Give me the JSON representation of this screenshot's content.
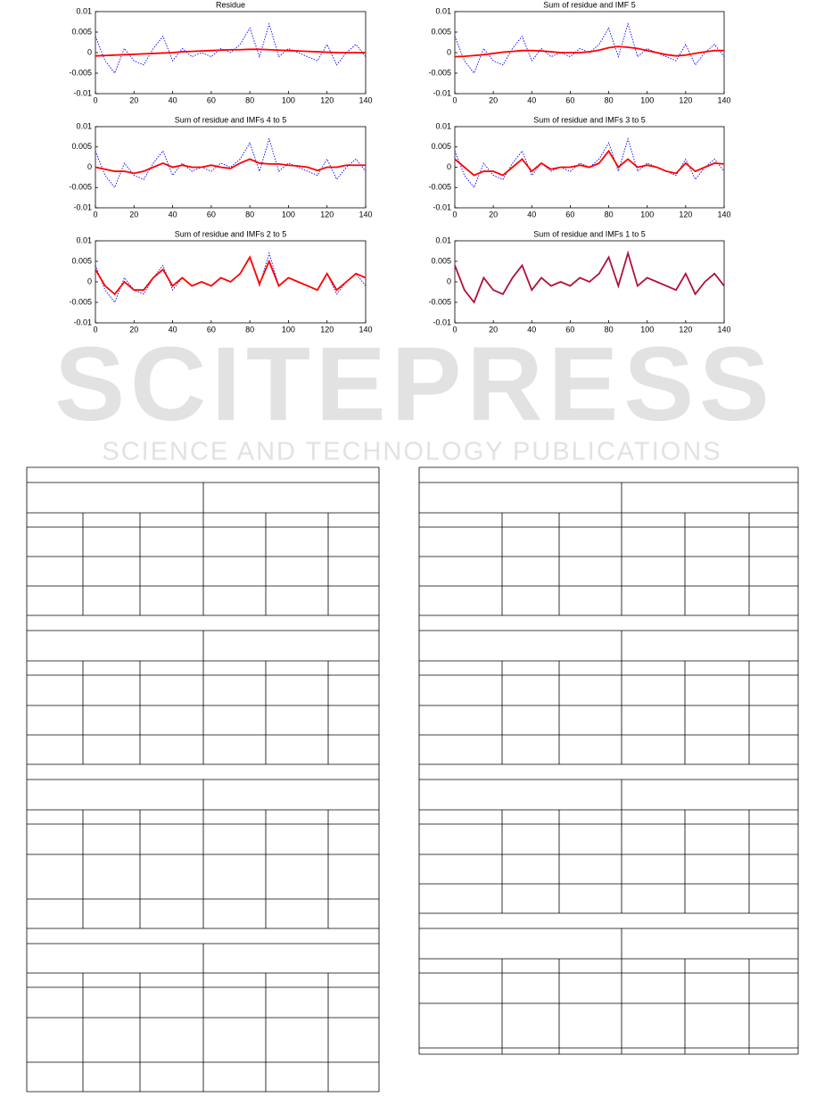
{
  "watermark": {
    "title": "SCITEPRESS",
    "subtitle": "SCIENCE AND TECHNOLOGY PUBLICATIONS"
  },
  "chart_data": [
    {
      "type": "line",
      "title": "Residue",
      "x": [
        0,
        5,
        10,
        15,
        20,
        25,
        30,
        35,
        40,
        45,
        50,
        55,
        60,
        65,
        70,
        75,
        80,
        85,
        90,
        95,
        100,
        105,
        110,
        115,
        120,
        125,
        130,
        135,
        140
      ],
      "series": [
        {
          "color": "#0000ff",
          "style": "dotted",
          "values": [
            0.004,
            -0.002,
            -0.005,
            0.001,
            -0.002,
            -0.003,
            0.001,
            0.004,
            -0.002,
            0.001,
            -0.001,
            0,
            -0.001,
            0.001,
            0,
            0.002,
            0.006,
            -0.001,
            0.007,
            -0.001,
            0.001,
            0,
            -0.001,
            -0.002,
            0.002,
            -0.003,
            0,
            0.002,
            -0.001
          ]
        },
        {
          "color": "#ff0000",
          "style": "solid",
          "values": [
            -0.0008,
            -0.0007,
            -0.0006,
            -0.0005,
            -0.0004,
            -0.0003,
            -0.0002,
            -0.0001,
            0,
            0.0002,
            0.0003,
            0.0004,
            0.0005,
            0.0006,
            0.0007,
            0.0007,
            0.0008,
            0.0008,
            0.0007,
            0.0006,
            0.0005,
            0.0004,
            0.0003,
            0.0002,
            0.0001,
            0,
            0,
            0,
            0
          ]
        }
      ],
      "xlim": [
        0,
        140
      ],
      "xticks": [
        0,
        20,
        40,
        60,
        80,
        100,
        120,
        140
      ],
      "ylim": [
        -0.01,
        0.01
      ],
      "yticks": [
        -0.01,
        -0.005,
        0,
        0.005,
        0.01
      ]
    },
    {
      "type": "line",
      "title": "Sum of residue and IMF 5",
      "x": [
        0,
        5,
        10,
        15,
        20,
        25,
        30,
        35,
        40,
        45,
        50,
        55,
        60,
        65,
        70,
        75,
        80,
        85,
        90,
        95,
        100,
        105,
        110,
        115,
        120,
        125,
        130,
        135,
        140
      ],
      "series": [
        {
          "color": "#0000ff",
          "style": "dotted",
          "values": [
            0.004,
            -0.002,
            -0.005,
            0.001,
            -0.002,
            -0.003,
            0.001,
            0.004,
            -0.002,
            0.001,
            -0.001,
            0,
            -0.001,
            0.001,
            0,
            0.002,
            0.006,
            -0.001,
            0.007,
            -0.001,
            0.001,
            0,
            -0.001,
            -0.002,
            0.002,
            -0.003,
            0,
            0.002,
            -0.001
          ]
        },
        {
          "color": "#ff0000",
          "style": "solid",
          "values": [
            -0.001,
            -0.0009,
            -0.0007,
            -0.0005,
            -0.0002,
            0.0001,
            0.0003,
            0.0005,
            0.0005,
            0.0004,
            0.0002,
            0,
            0,
            0,
            0.0002,
            0.0006,
            0.0012,
            0.0015,
            0.0013,
            0.001,
            0.0005,
            0,
            -0.0005,
            -0.0008,
            -0.0006,
            -0.0002,
            0.0002,
            0.0005,
            0.0005
          ]
        }
      ],
      "xlim": [
        0,
        140
      ],
      "xticks": [
        0,
        20,
        40,
        60,
        80,
        100,
        120,
        140
      ],
      "ylim": [
        -0.01,
        0.01
      ],
      "yticks": [
        -0.01,
        -0.005,
        0,
        0.005,
        0.01
      ]
    },
    {
      "type": "line",
      "title": "Sum of residue and IMFs 4 to 5",
      "x": [
        0,
        5,
        10,
        15,
        20,
        25,
        30,
        35,
        40,
        45,
        50,
        55,
        60,
        65,
        70,
        75,
        80,
        85,
        90,
        95,
        100,
        105,
        110,
        115,
        120,
        125,
        130,
        135,
        140
      ],
      "series": [
        {
          "color": "#0000ff",
          "style": "dotted",
          "values": [
            0.004,
            -0.002,
            -0.005,
            0.001,
            -0.002,
            -0.003,
            0.001,
            0.004,
            -0.002,
            0.001,
            -0.001,
            0,
            -0.001,
            0.001,
            0,
            0.002,
            0.006,
            -0.001,
            0.007,
            -0.001,
            0.001,
            0,
            -0.001,
            -0.002,
            0.002,
            -0.003,
            0,
            0.002,
            -0.001
          ]
        },
        {
          "color": "#ff0000",
          "style": "solid",
          "values": [
            0,
            -0.0005,
            -0.001,
            -0.001,
            -0.0015,
            -0.001,
            0,
            0.001,
            0,
            0.0005,
            0,
            0,
            0.0005,
            0,
            -0.0003,
            0.001,
            0.002,
            0.001,
            0.0008,
            0.0008,
            0.0005,
            0.0003,
            0,
            -0.0008,
            0,
            0,
            0.0005,
            0.0005,
            0.0005
          ]
        }
      ],
      "xlim": [
        0,
        140
      ],
      "xticks": [
        0,
        20,
        40,
        60,
        80,
        100,
        120,
        140
      ],
      "ylim": [
        -0.01,
        0.01
      ],
      "yticks": [
        -0.01,
        -0.005,
        0,
        0.005,
        0.01
      ]
    },
    {
      "type": "line",
      "title": "Sum of residue and IMFs 3 to 5",
      "x": [
        0,
        5,
        10,
        15,
        20,
        25,
        30,
        35,
        40,
        45,
        50,
        55,
        60,
        65,
        70,
        75,
        80,
        85,
        90,
        95,
        100,
        105,
        110,
        115,
        120,
        125,
        130,
        135,
        140
      ],
      "series": [
        {
          "color": "#0000ff",
          "style": "dotted",
          "values": [
            0.004,
            -0.002,
            -0.005,
            0.001,
            -0.002,
            -0.003,
            0.001,
            0.004,
            -0.002,
            0.001,
            -0.001,
            0,
            -0.001,
            0.001,
            0,
            0.002,
            0.006,
            -0.001,
            0.007,
            -0.001,
            0.001,
            0,
            -0.001,
            -0.002,
            0.002,
            -0.003,
            0,
            0.002,
            -0.001
          ]
        },
        {
          "color": "#ff0000",
          "style": "solid",
          "values": [
            0.002,
            0,
            -0.002,
            -0.001,
            -0.001,
            -0.002,
            0,
            0.002,
            -0.001,
            0.001,
            -0.0005,
            0,
            0,
            0.0005,
            0,
            0.001,
            0.004,
            0,
            0.002,
            0,
            0.0005,
            0,
            -0.001,
            -0.0015,
            0.001,
            -0.001,
            0,
            0.001,
            0.0008
          ]
        }
      ],
      "xlim": [
        0,
        140
      ],
      "xticks": [
        0,
        20,
        40,
        60,
        80,
        100,
        120,
        140
      ],
      "ylim": [
        -0.01,
        0.01
      ],
      "yticks": [
        -0.01,
        -0.005,
        0,
        0.005,
        0.01
      ]
    },
    {
      "type": "line",
      "title": "Sum of residue and IMFs 2 to 5",
      "x": [
        0,
        5,
        10,
        15,
        20,
        25,
        30,
        35,
        40,
        45,
        50,
        55,
        60,
        65,
        70,
        75,
        80,
        85,
        90,
        95,
        100,
        105,
        110,
        115,
        120,
        125,
        130,
        135,
        140
      ],
      "series": [
        {
          "color": "#0000ff",
          "style": "dotted",
          "values": [
            0.004,
            -0.002,
            -0.005,
            0.001,
            -0.002,
            -0.003,
            0.001,
            0.004,
            -0.002,
            0.001,
            -0.001,
            0,
            -0.001,
            0.001,
            0,
            0.002,
            0.006,
            -0.001,
            0.007,
            -0.001,
            0.001,
            0,
            -0.001,
            -0.002,
            0.002,
            -0.003,
            0,
            0.002,
            -0.001
          ]
        },
        {
          "color": "#ff0000",
          "style": "solid",
          "values": [
            0.003,
            -0.001,
            -0.003,
            0,
            -0.002,
            -0.002,
            0.001,
            0.003,
            -0.001,
            0.001,
            -0.001,
            0,
            -0.001,
            0.001,
            0,
            0.002,
            0.006,
            -0.0005,
            0.005,
            -0.001,
            0.001,
            0,
            -0.001,
            -0.002,
            0.002,
            -0.002,
            0,
            0.002,
            0.001
          ]
        }
      ],
      "xlim": [
        0,
        140
      ],
      "xticks": [
        0,
        20,
        40,
        60,
        80,
        100,
        120,
        140
      ],
      "ylim": [
        -0.01,
        0.01
      ],
      "yticks": [
        -0.01,
        -0.005,
        0,
        0.005,
        0.01
      ]
    },
    {
      "type": "line",
      "title": "Sum of residue and IMFs 1 to 5",
      "x": [
        0,
        5,
        10,
        15,
        20,
        25,
        30,
        35,
        40,
        45,
        50,
        55,
        60,
        65,
        70,
        75,
        80,
        85,
        90,
        95,
        100,
        105,
        110,
        115,
        120,
        125,
        130,
        135,
        140
      ],
      "series": [
        {
          "color": "#0000ff",
          "style": "dotted",
          "values": [
            0.004,
            -0.002,
            -0.005,
            0.001,
            -0.002,
            -0.003,
            0.001,
            0.004,
            -0.002,
            0.001,
            -0.001,
            0,
            -0.001,
            0.001,
            0,
            0.002,
            0.006,
            -0.001,
            0.007,
            -0.001,
            0.001,
            0,
            -0.001,
            -0.002,
            0.002,
            -0.003,
            0,
            0.002,
            -0.001
          ]
        },
        {
          "color": "#b0103a",
          "style": "solid",
          "values": [
            0.004,
            -0.002,
            -0.005,
            0.001,
            -0.002,
            -0.003,
            0.001,
            0.004,
            -0.002,
            0.001,
            -0.001,
            0,
            -0.001,
            0.001,
            0,
            0.002,
            0.006,
            -0.001,
            0.007,
            -0.001,
            0.001,
            0,
            -0.001,
            -0.002,
            0.002,
            -0.003,
            0,
            0.002,
            -0.001
          ]
        }
      ],
      "xlim": [
        0,
        140
      ],
      "xticks": [
        0,
        20,
        40,
        60,
        80,
        100,
        120,
        140
      ],
      "ylim": [
        -0.01,
        0.01
      ],
      "yticks": [
        -0.01,
        -0.005,
        0,
        0.005,
        0.01
      ]
    }
  ]
}
